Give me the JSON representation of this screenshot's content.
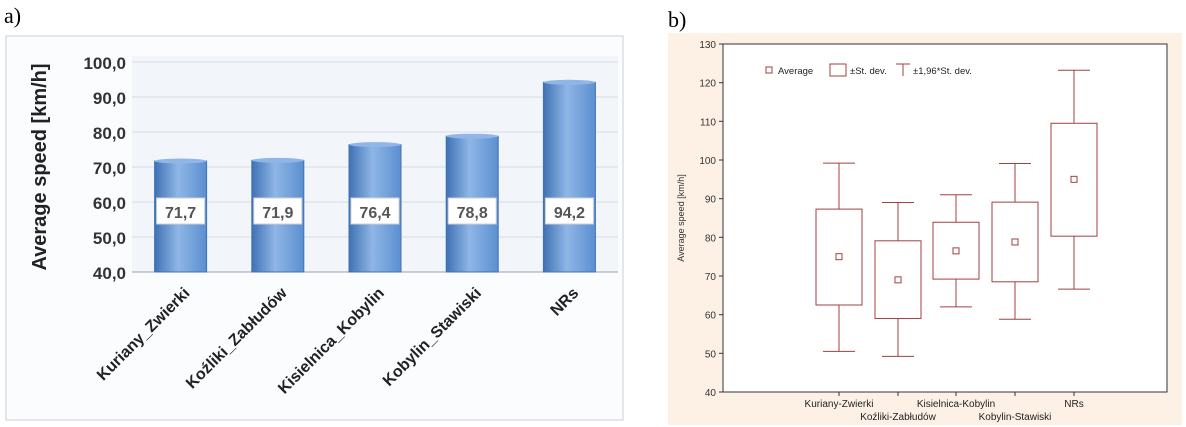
{
  "panel_labels": [
    "a)",
    "b)"
  ],
  "colors": {
    "bar_fill": "#5b8fd0",
    "bar_top": "#8fb6e6",
    "bar_edge": "#3f72b4",
    "plot_area_a": "#f2f6fb",
    "box_stroke": "#a04040",
    "plot_bg_b": "#fdf1e6",
    "axis_text_a": "#333333",
    "axis_text_b": "#333333"
  },
  "chart_data": [
    {
      "type": "bar",
      "ylabel": "Average speed [km/h]",
      "ylim": [
        40,
        100
      ],
      "yticks": [
        "40,0",
        "50,0",
        "60,0",
        "70,0",
        "80,0",
        "90,0",
        "100,0"
      ],
      "grid": true,
      "categories": [
        "Kuriany_Zwierki",
        "Koźliki_Zabłudów",
        "Kisielnica_Kobylin",
        "Kobylin_Stawiski",
        "NRs"
      ],
      "values": [
        71.7,
        71.9,
        76.4,
        78.8,
        94.2
      ],
      "data_labels": [
        "71,7",
        "71,9",
        "76,4",
        "78,8",
        "94,2"
      ]
    },
    {
      "type": "box",
      "ylabel": "Average speed [km/h]",
      "ylim": [
        40,
        130
      ],
      "yticks": [
        "40",
        "50",
        "60",
        "70",
        "80",
        "90",
        "100",
        "110",
        "120",
        "130"
      ],
      "grid": false,
      "legend": {
        "position": "top-left",
        "items": [
          "Average",
          "±St. dev.",
          "±1,96*St. dev."
        ]
      },
      "categories": [
        "Kuriany-Zwierki",
        "Koźliki-Zabłudów",
        "Kisielnica-Kobylin",
        "Kobylin-Stawiski",
        "NRs"
      ],
      "series": [
        {
          "category": "Kuriany-Zwierki",
          "mean": 75,
          "sd_low": 62.5,
          "sd_high": 87.3,
          "ci_low": 50.5,
          "ci_high": 99.2
        },
        {
          "category": "Koźliki-Zabłudów",
          "mean": 69,
          "sd_low": 59,
          "sd_high": 79.1,
          "ci_low": 49.2,
          "ci_high": 89
        },
        {
          "category": "Kisielnica-Kobylin",
          "mean": 76.5,
          "sd_low": 69.2,
          "sd_high": 83.9,
          "ci_low": 62,
          "ci_high": 91
        },
        {
          "category": "Kobylin-Stawiski",
          "mean": 78.8,
          "sd_low": 68.5,
          "sd_high": 89.1,
          "ci_low": 58.8,
          "ci_high": 99.1
        },
        {
          "category": "NRs",
          "mean": 95,
          "sd_low": 80.3,
          "sd_high": 109.5,
          "ci_low": 66.6,
          "ci_high": 123.2
        }
      ]
    }
  ]
}
